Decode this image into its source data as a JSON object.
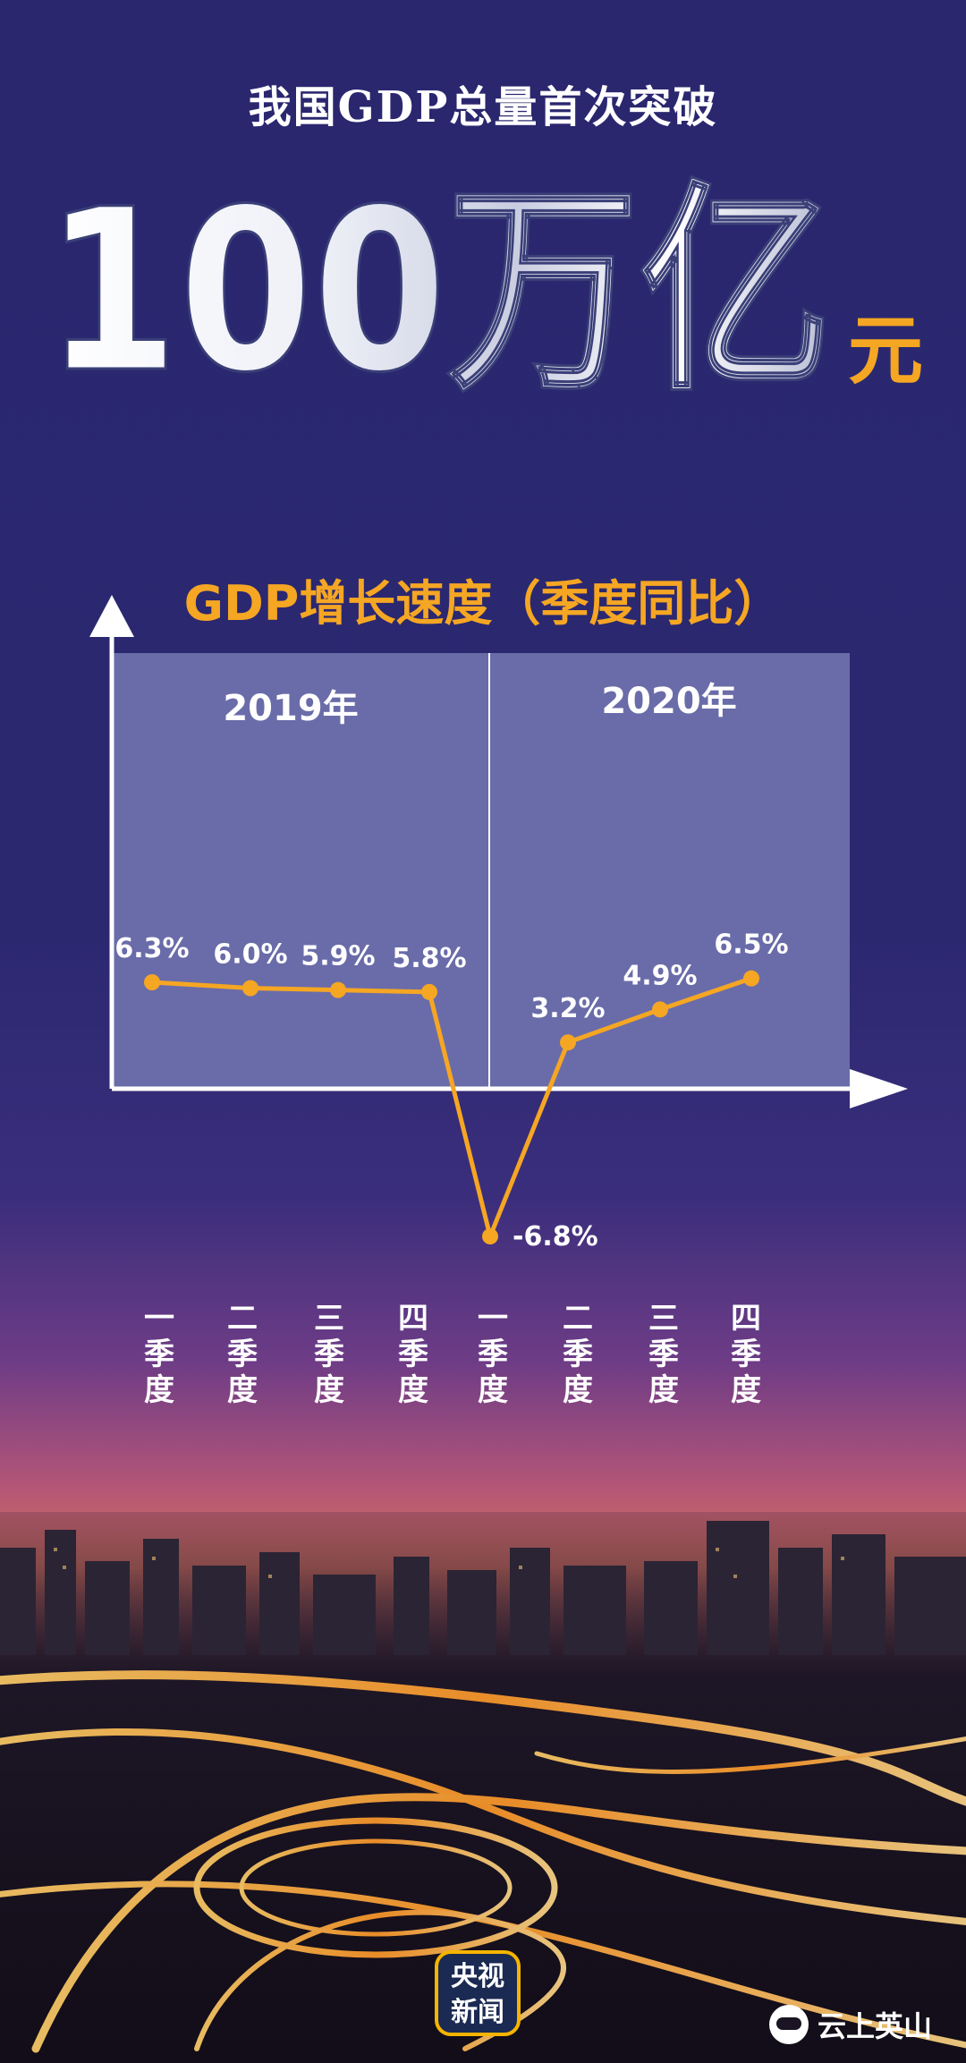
{
  "header": {
    "headline": "我国GDP总量首次突破",
    "big_number": "100万亿",
    "unit": "元"
  },
  "chart_data": {
    "type": "line",
    "title": "GDP增长速度（季度同比）",
    "year_labels": [
      "2019年",
      "2020年"
    ],
    "categories": [
      "一季度",
      "二季度",
      "三季度",
      "四季度",
      "一季度",
      "二季度",
      "三季度",
      "四季度"
    ],
    "series": [
      {
        "values": [
          6.3,
          6.0,
          5.9,
          5.8,
          -6.8,
          3.2,
          4.9,
          6.5
        ]
      }
    ],
    "value_labels": [
      "6.3%",
      "6.0%",
      "5.9%",
      "5.8%",
      "-6.8%",
      "3.2%",
      "4.9%",
      "6.5%"
    ],
    "colors": {
      "line": "#f5a623",
      "panel": "#6e70ac",
      "axis": "#ffffff",
      "title": "#f5a623"
    }
  },
  "footer": {
    "logo_line1": "央视",
    "logo_line2": "新闻",
    "brand": "云上英山"
  }
}
